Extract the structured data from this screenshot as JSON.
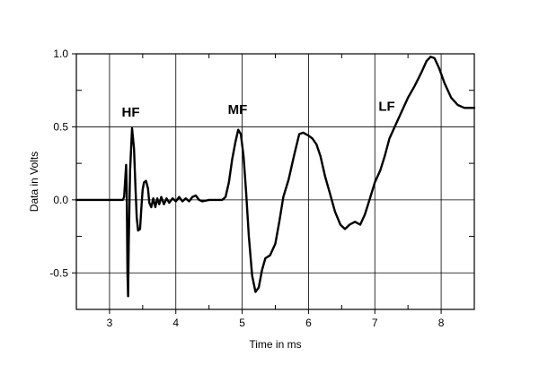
{
  "chart_data": {
    "type": "line",
    "title": "",
    "xlabel": "Time in ms",
    "ylabel": "Data in Volts",
    "xlim": [
      2.5,
      8.5
    ],
    "ylim": [
      -0.75,
      1.0
    ],
    "grid": true,
    "x_ticks": [
      {
        "value": 3,
        "label": "3"
      },
      {
        "value": 4,
        "label": "4"
      },
      {
        "value": 5,
        "label": "5"
      },
      {
        "value": 6,
        "label": "6"
      },
      {
        "value": 7,
        "label": "7"
      },
      {
        "value": 8,
        "label": "8"
      }
    ],
    "y_ticks": [
      {
        "value": 1.0,
        "label": "1.0"
      },
      {
        "value": 0.5,
        "label": "0.5"
      },
      {
        "value": 0.0,
        "label": "0.0"
      },
      {
        "value": -0.5,
        "label": "-0.5"
      }
    ],
    "annotations": [
      {
        "text": "HF",
        "x": 3.32,
        "y": 0.57
      },
      {
        "text": "MF",
        "x": 4.93,
        "y": 0.59
      },
      {
        "text": "LF",
        "x": 7.18,
        "y": 0.61
      }
    ],
    "series": [
      {
        "points": [
          [
            2.5,
            0.0
          ],
          [
            3.2,
            0.0
          ],
          [
            3.22,
            0.02
          ],
          [
            3.25,
            0.24
          ],
          [
            3.26,
            0.05
          ],
          [
            3.27,
            -0.5
          ],
          [
            3.28,
            -0.66
          ],
          [
            3.29,
            -0.3
          ],
          [
            3.31,
            0.2
          ],
          [
            3.34,
            0.49
          ],
          [
            3.37,
            0.35
          ],
          [
            3.39,
            0.1
          ],
          [
            3.41,
            -0.12
          ],
          [
            3.43,
            -0.21
          ],
          [
            3.46,
            -0.2
          ],
          [
            3.48,
            -0.05
          ],
          [
            3.5,
            0.07
          ],
          [
            3.52,
            0.12
          ],
          [
            3.55,
            0.13
          ],
          [
            3.58,
            0.08
          ],
          [
            3.6,
            -0.02
          ],
          [
            3.63,
            -0.05
          ],
          [
            3.66,
            0.01
          ],
          [
            3.69,
            -0.05
          ],
          [
            3.72,
            0.01
          ],
          [
            3.75,
            -0.03
          ],
          [
            3.78,
            0.02
          ],
          [
            3.82,
            -0.03
          ],
          [
            3.86,
            0.01
          ],
          [
            3.9,
            -0.02
          ],
          [
            3.95,
            0.01
          ],
          [
            4.0,
            -0.01
          ],
          [
            4.05,
            0.02
          ],
          [
            4.1,
            -0.01
          ],
          [
            4.15,
            0.01
          ],
          [
            4.2,
            -0.01
          ],
          [
            4.25,
            0.02
          ],
          [
            4.3,
            0.03
          ],
          [
            4.35,
            0.0
          ],
          [
            4.4,
            -0.01
          ],
          [
            4.5,
            0.0
          ],
          [
            4.6,
            0.0
          ],
          [
            4.7,
            0.0
          ],
          [
            4.75,
            0.02
          ],
          [
            4.8,
            0.12
          ],
          [
            4.85,
            0.28
          ],
          [
            4.9,
            0.4
          ],
          [
            4.94,
            0.48
          ],
          [
            4.98,
            0.45
          ],
          [
            5.02,
            0.3
          ],
          [
            5.06,
            0.05
          ],
          [
            5.1,
            -0.25
          ],
          [
            5.15,
            -0.52
          ],
          [
            5.2,
            -0.63
          ],
          [
            5.25,
            -0.6
          ],
          [
            5.3,
            -0.48
          ],
          [
            5.35,
            -0.4
          ],
          [
            5.42,
            -0.38
          ],
          [
            5.5,
            -0.3
          ],
          [
            5.56,
            -0.15
          ],
          [
            5.62,
            0.02
          ],
          [
            5.7,
            0.14
          ],
          [
            5.78,
            0.3
          ],
          [
            5.86,
            0.45
          ],
          [
            5.92,
            0.46
          ],
          [
            6.0,
            0.44
          ],
          [
            6.06,
            0.42
          ],
          [
            6.12,
            0.38
          ],
          [
            6.18,
            0.3
          ],
          [
            6.25,
            0.16
          ],
          [
            6.32,
            0.05
          ],
          [
            6.4,
            -0.08
          ],
          [
            6.48,
            -0.17
          ],
          [
            6.55,
            -0.2
          ],
          [
            6.62,
            -0.17
          ],
          [
            6.7,
            -0.15
          ],
          [
            6.78,
            -0.17
          ],
          [
            6.85,
            -0.1
          ],
          [
            6.92,
            0.0
          ],
          [
            7.0,
            0.12
          ],
          [
            7.08,
            0.2
          ],
          [
            7.15,
            0.3
          ],
          [
            7.22,
            0.42
          ],
          [
            7.3,
            0.5
          ],
          [
            7.4,
            0.6
          ],
          [
            7.5,
            0.7
          ],
          [
            7.6,
            0.78
          ],
          [
            7.7,
            0.87
          ],
          [
            7.78,
            0.95
          ],
          [
            7.84,
            0.98
          ],
          [
            7.9,
            0.97
          ],
          [
            7.97,
            0.9
          ],
          [
            8.05,
            0.8
          ],
          [
            8.15,
            0.7
          ],
          [
            8.25,
            0.65
          ],
          [
            8.35,
            0.63
          ],
          [
            8.5,
            0.63
          ]
        ]
      }
    ]
  }
}
